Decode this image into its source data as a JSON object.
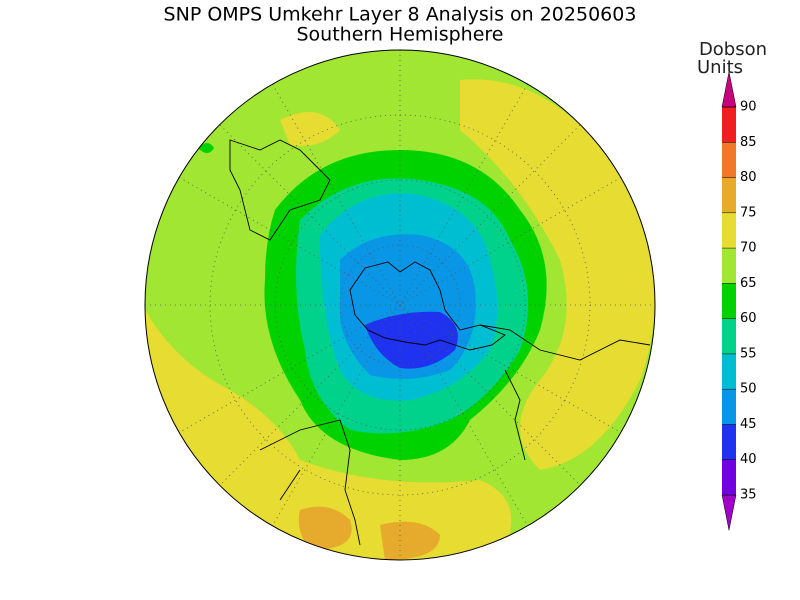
{
  "title": "SNP OMPS Umkehr Layer 8 Analysis on 20250603",
  "subtitle": "Southern Hemisphere",
  "colorbar": {
    "label": [
      "Dobson",
      "Units"
    ],
    "ticks": [
      35,
      40,
      45,
      50,
      55,
      60,
      65,
      70,
      75,
      80,
      85,
      90
    ],
    "colors": [
      "#a000c8",
      "#7000e0",
      "#1e32f0",
      "#0a96e6",
      "#00bed2",
      "#00d28c",
      "#00d200",
      "#a0e632",
      "#e6dc32",
      "#e6aa2d",
      "#f07828",
      "#f01e1e",
      "#c8007d"
    ]
  }
}
